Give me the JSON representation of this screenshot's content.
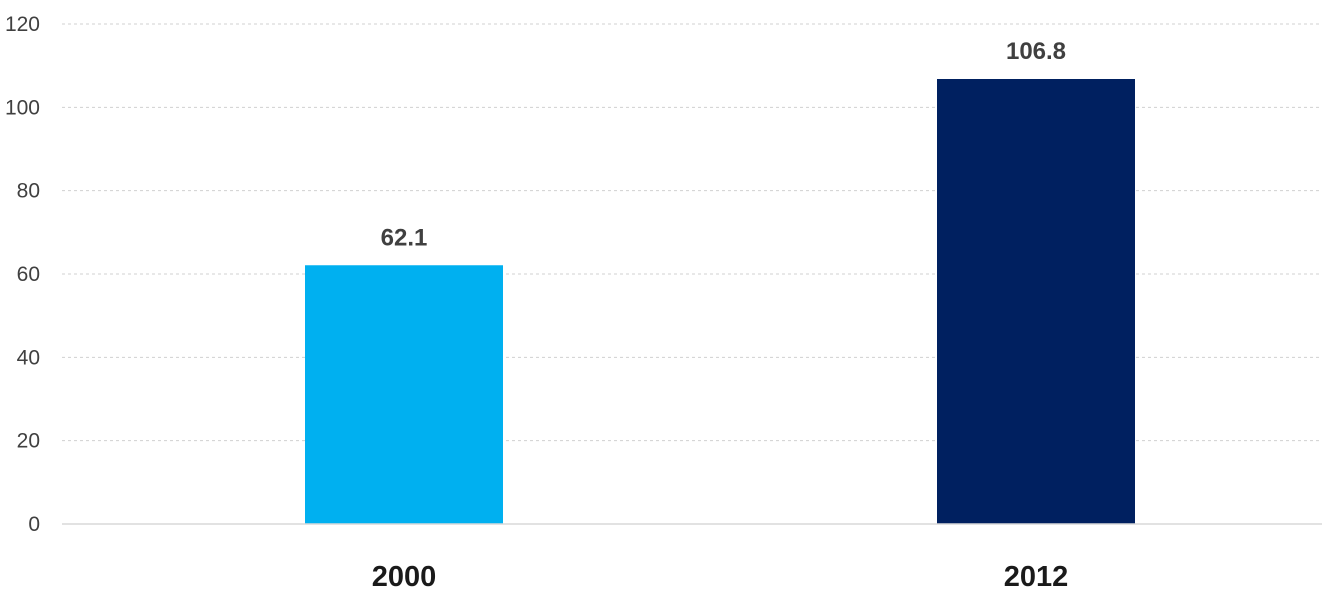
{
  "chart_data": {
    "type": "bar",
    "categories": [
      "2000",
      "2012"
    ],
    "values": [
      62.1,
      106.8
    ],
    "data_labels": [
      "62.1",
      "106.8"
    ],
    "bar_colors": [
      "#00B0F0",
      "#002060"
    ],
    "ylim": [
      0,
      120
    ],
    "yticks": [
      0,
      20,
      40,
      60,
      80,
      100,
      120
    ],
    "ytick_labels": [
      "0",
      "20",
      "40",
      "60",
      "80",
      "100",
      "120"
    ],
    "title": "",
    "xlabel": "",
    "ylabel": "",
    "grid": true,
    "legend": "none"
  }
}
